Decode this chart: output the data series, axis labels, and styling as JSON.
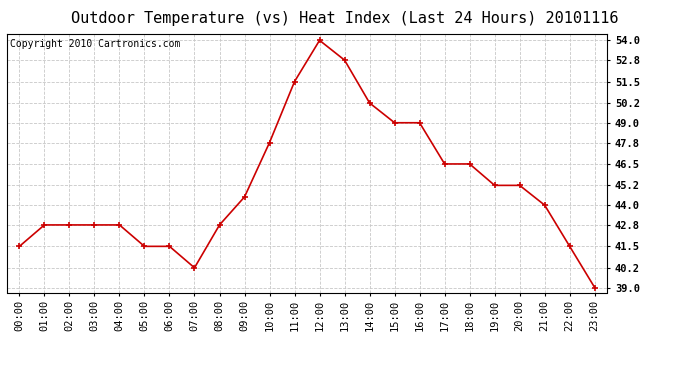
{
  "title": "Outdoor Temperature (vs) Heat Index (Last 24 Hours) 20101116",
  "copyright": "Copyright 2010 Cartronics.com",
  "x_labels": [
    "00:00",
    "01:00",
    "02:00",
    "03:00",
    "04:00",
    "05:00",
    "06:00",
    "07:00",
    "08:00",
    "09:00",
    "10:00",
    "11:00",
    "12:00",
    "13:00",
    "14:00",
    "15:00",
    "16:00",
    "17:00",
    "18:00",
    "19:00",
    "20:00",
    "21:00",
    "22:00",
    "23:00"
  ],
  "y_values": [
    41.5,
    42.8,
    42.8,
    42.8,
    42.8,
    41.5,
    41.5,
    40.2,
    42.8,
    44.5,
    47.8,
    51.5,
    54.0,
    52.8,
    50.2,
    49.0,
    49.0,
    46.5,
    46.5,
    45.2,
    45.2,
    44.0,
    41.5,
    39.0
  ],
  "line_color": "#cc0000",
  "marker_color": "#cc0000",
  "bg_color": "#ffffff",
  "grid_color": "#c8c8c8",
  "ylim_min": 38.7,
  "ylim_max": 54.4,
  "yticks": [
    39.0,
    40.2,
    41.5,
    42.8,
    44.0,
    45.2,
    46.5,
    47.8,
    49.0,
    50.2,
    51.5,
    52.8,
    54.0
  ],
  "title_fontsize": 11,
  "copyright_fontsize": 7,
  "axis_tick_fontsize": 7.5
}
